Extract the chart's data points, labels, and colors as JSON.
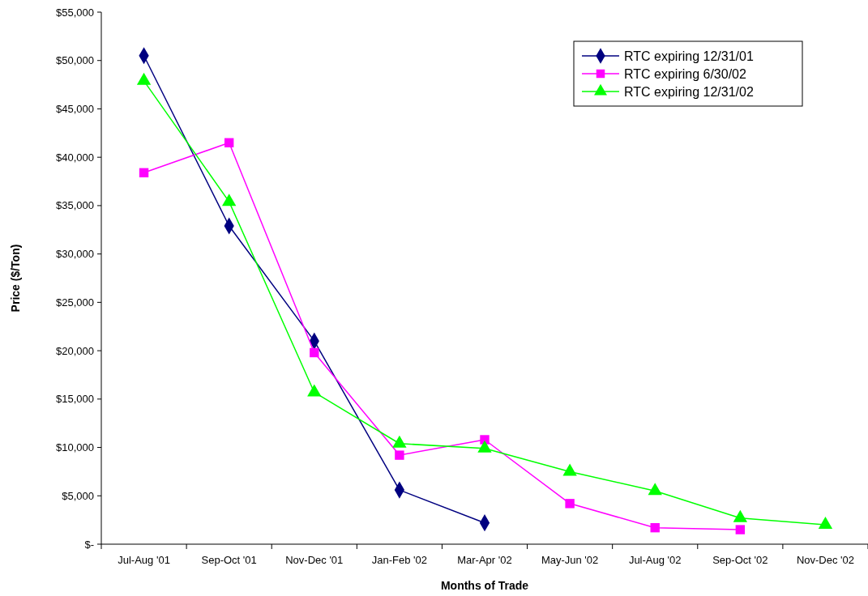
{
  "chart_data": {
    "type": "line",
    "xlabel": "Months of Trade",
    "ylabel": "Price ($/Ton)",
    "categories": [
      "Jul-Aug '01",
      "Sep-Oct '01",
      "Nov-Dec '01",
      "Jan-Feb '02",
      "Mar-Apr '02",
      "May-Jun '02",
      "Jul-Aug '02",
      "Sep-Oct '02",
      "Nov-Dec '02"
    ],
    "ylim": [
      0,
      55000
    ],
    "yticks": [
      {
        "value": 0,
        "label": "$-"
      },
      {
        "value": 5000,
        "label": "$5,000"
      },
      {
        "value": 10000,
        "label": "$10,000"
      },
      {
        "value": 15000,
        "label": "$15,000"
      },
      {
        "value": 20000,
        "label": "$20,000"
      },
      {
        "value": 25000,
        "label": "$25,000"
      },
      {
        "value": 30000,
        "label": "$30,000"
      },
      {
        "value": 35000,
        "label": "$35,000"
      },
      {
        "value": 40000,
        "label": "$40,000"
      },
      {
        "value": 45000,
        "label": "$45,000"
      },
      {
        "value": 50000,
        "label": "$50,000"
      },
      {
        "value": 55000,
        "label": "$55,000"
      }
    ],
    "grid": false,
    "legend": "top right",
    "line_style": "solid",
    "series": [
      {
        "name": "RTC expiring 12/31/01",
        "color": "#000080",
        "marker": "diamond",
        "values": [
          50500,
          32900,
          21000,
          5600,
          2200,
          null,
          null,
          null,
          null
        ]
      },
      {
        "name": "RTC expiring 6/30/02",
        "color": "#ff00ff",
        "marker": "square",
        "values": [
          38400,
          41500,
          19800,
          9200,
          10800,
          4200,
          1700,
          1500,
          null
        ]
      },
      {
        "name": "RTC expiring 12/31/02",
        "color": "#00ff00",
        "marker": "triangle",
        "values": [
          47900,
          35400,
          15700,
          10400,
          9900,
          7500,
          5500,
          2700,
          2000
        ]
      }
    ]
  }
}
